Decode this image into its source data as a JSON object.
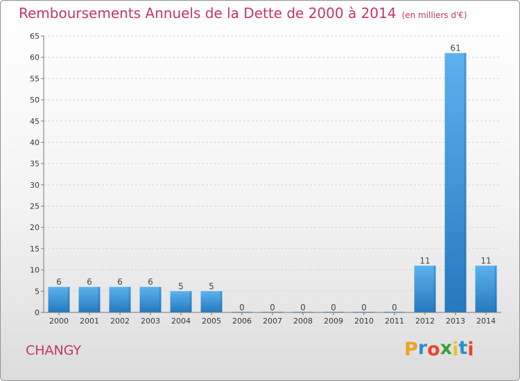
{
  "chart_data": {
    "type": "bar",
    "title": "Remboursements Annuels de la Dette de 2000 à 2014",
    "subtitle": "(en milliers d'€)",
    "categories": [
      "2000",
      "2001",
      "2002",
      "2003",
      "2004",
      "2005",
      "2006",
      "2007",
      "2008",
      "2009",
      "2010",
      "2011",
      "2012",
      "2013",
      "2014"
    ],
    "values": [
      6,
      6,
      6,
      6,
      5,
      5,
      0,
      0,
      0,
      0,
      0,
      0,
      11,
      61,
      11
    ],
    "ylim": [
      0,
      65
    ],
    "yticks": [
      0,
      5,
      10,
      15,
      20,
      25,
      30,
      35,
      40,
      45,
      50,
      55,
      60,
      65
    ],
    "grid": true,
    "legend": "none",
    "bar_color": "#3e9ee3"
  },
  "commune": "CHANGY",
  "logo": {
    "letters": [
      "P",
      "r",
      "o",
      "x",
      "i",
      "t",
      "i"
    ],
    "colors": [
      "#f0a21d",
      "#2a8fd0",
      "#e8452c",
      "#3a9e3a",
      "#f0c02a",
      "#2a8fd0",
      "#e8452c"
    ]
  }
}
